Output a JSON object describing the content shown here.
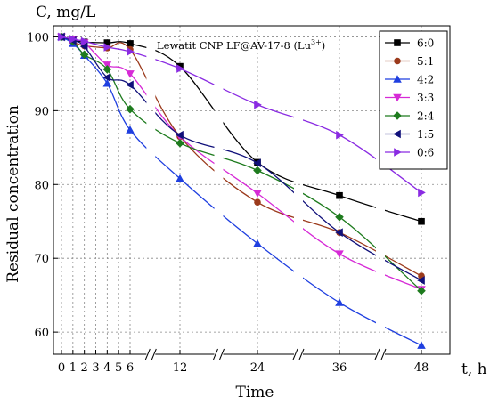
{
  "chart_data": {
    "type": "line",
    "title": "Lewatit CNP LF@AV-17-8 (Lu",
    "title_sup": "3+",
    "title_close": ")",
    "xlabel": "Time",
    "ylabel": "Residual concentration",
    "x_unit": "t, h",
    "y_unit": "C, mg/L",
    "x_ticks": [
      0,
      1,
      2,
      3,
      4,
      5,
      6,
      12,
      24,
      36,
      48
    ],
    "y_ticks": [
      60,
      70,
      80,
      90,
      100
    ],
    "ylim": [
      57,
      101.5
    ],
    "x_axis_breaks": [
      8.5,
      18,
      30,
      42
    ],
    "grid": true,
    "legend_position": "top-right",
    "x": [
      0,
      1,
      2,
      4,
      6,
      12,
      24,
      36,
      48
    ],
    "series": [
      {
        "name": "6:0",
        "color": "#000000",
        "marker": "square",
        "values": [
          100,
          99.6,
          99.3,
          99.2,
          99.1,
          96,
          83,
          78.5,
          75
        ]
      },
      {
        "name": "5:1",
        "color": "#9b3a1c",
        "marker": "circle",
        "values": [
          100,
          99.3,
          98.8,
          98.5,
          98.3,
          86.5,
          77.6,
          73.5,
          67.6
        ]
      },
      {
        "name": "4:2",
        "color": "#1f3fe0",
        "marker": "triangle-up",
        "values": [
          100,
          99.1,
          97.5,
          93.7,
          87.4,
          80.8,
          72,
          64,
          58.2
        ]
      },
      {
        "name": "3:3",
        "color": "#d62ad6",
        "marker": "triangle-down",
        "values": [
          100,
          99.6,
          99.2,
          96.2,
          95,
          86.5,
          78.8,
          70.6,
          65.8
        ]
      },
      {
        "name": "2:4",
        "color": "#1e7b1e",
        "marker": "diamond",
        "values": [
          100,
          99.4,
          97.6,
          95.6,
          90.2,
          85.6,
          81.9,
          75.6,
          65.6
        ]
      },
      {
        "name": "1:5",
        "color": "#10107a",
        "marker": "triangle-left",
        "values": [
          100,
          99.5,
          98.7,
          94.5,
          93.5,
          86.7,
          82.9,
          73.5,
          67
        ]
      },
      {
        "name": "0:6",
        "color": "#8a2be2",
        "marker": "triangle-right",
        "values": [
          100,
          99.7,
          99.4,
          98.6,
          98,
          95.7,
          90.8,
          86.7,
          78.9
        ]
      }
    ]
  }
}
